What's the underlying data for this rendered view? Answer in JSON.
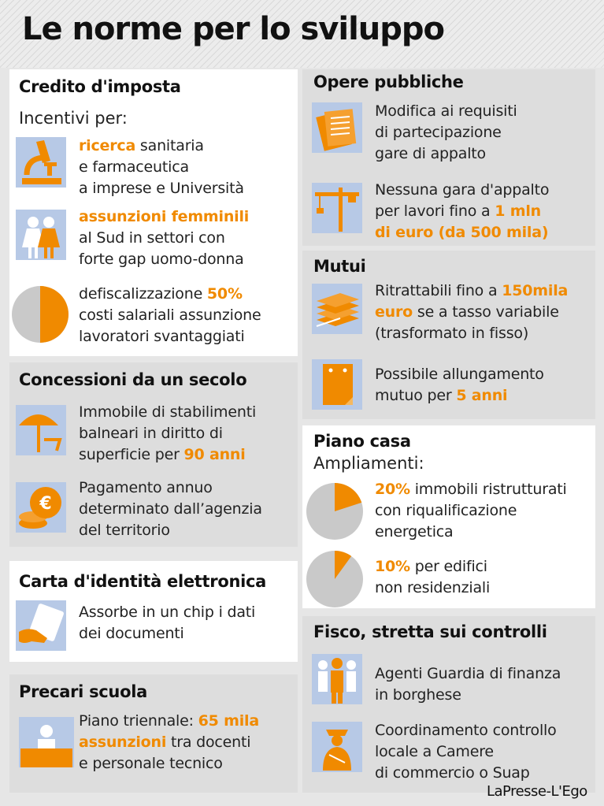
{
  "title": "Le norme per lo sviluppo",
  "credit": "LaPresse-L'Ego",
  "colors": {
    "accent": "#f08a00",
    "icon_bg": "#b7c9e6",
    "pie_grey": "#c9c9c9"
  },
  "left": {
    "credito": {
      "heading": "Credito d'imposta",
      "sub": "Incentivi per:",
      "items": [
        {
          "icon": "microscope-icon",
          "lines": [
            [
              {
                "t": "ricerca",
                "hl": true
              },
              {
                "t": " sanitaria"
              }
            ],
            [
              {
                "t": "e farmaceutica"
              }
            ],
            [
              {
                "t": "a imprese e Università"
              }
            ]
          ]
        },
        {
          "icon": "women-icon",
          "lines": [
            [
              {
                "t": "assunzioni femminili",
                "hl": true
              }
            ],
            [
              {
                "t": "al Sud in settori con"
              }
            ],
            [
              {
                "t": "forte gap uomo-donna"
              }
            ]
          ]
        },
        {
          "icon": "pie-50-icon",
          "pie_share": 0.5,
          "lines": [
            [
              {
                "t": "defiscalizzazione "
              },
              {
                "t": "50%",
                "hl": true
              }
            ],
            [
              {
                "t": "costi salariali assunzione"
              }
            ],
            [
              {
                "t": "lavoratori svantaggiati"
              }
            ]
          ]
        }
      ]
    },
    "concessioni": {
      "heading": "Concessioni da un secolo",
      "items": [
        {
          "icon": "beach-umbrella-icon",
          "lines": [
            [
              {
                "t": "Immobile di stabilimenti"
              }
            ],
            [
              {
                "t": "balneari in diritto di"
              }
            ],
            [
              {
                "t": "superficie per "
              },
              {
                "t": "90 anni",
                "hl": true
              }
            ]
          ]
        },
        {
          "icon": "euro-coins-icon",
          "lines": [
            [
              {
                "t": "Pagamento annuo"
              }
            ],
            [
              {
                "t": "determinato dall’agenzia"
              }
            ],
            [
              {
                "t": "del territorio"
              }
            ]
          ]
        }
      ]
    },
    "carta": {
      "heading": "Carta d'identità elettronica",
      "items": [
        {
          "icon": "id-card-icon",
          "lines": [
            [
              {
                "t": "Assorbe in un chip i dati"
              }
            ],
            [
              {
                "t": "dei documenti"
              }
            ]
          ]
        }
      ]
    },
    "precari": {
      "heading": "Precari scuola",
      "items": [
        {
          "icon": "teacher-desk-icon",
          "lines": [
            [
              {
                "t": "Piano triennale: "
              },
              {
                "t": "65 mila",
                "hl": true
              }
            ],
            [
              {
                "t": "assunzioni",
                "hl": true
              },
              {
                "t": " tra docenti"
              }
            ],
            [
              {
                "t": "e personale tecnico"
              }
            ]
          ]
        }
      ]
    }
  },
  "right": {
    "opere": {
      "heading": "Opere pubbliche",
      "items": [
        {
          "icon": "documents-icon",
          "lines": [
            [
              {
                "t": "Modifica ai requisiti"
              }
            ],
            [
              {
                "t": "di partecipazione"
              }
            ],
            [
              {
                "t": "gare di appalto"
              }
            ]
          ]
        },
        {
          "icon": "crane-icon",
          "lines": [
            [
              {
                "t": "Nessuna gara d'appalto"
              }
            ],
            [
              {
                "t": "per lavori fino a "
              },
              {
                "t": "1 mln",
                "hl": true
              }
            ],
            [
              {
                "t": "di euro (da 500 mila)",
                "hl": true
              }
            ]
          ]
        }
      ]
    },
    "mutui": {
      "heading": "Mutui",
      "items": [
        {
          "icon": "banknotes-icon",
          "lines": [
            [
              {
                "t": "Ritrattabili fino a "
              },
              {
                "t": "150mila",
                "hl": true
              }
            ],
            [
              {
                "t": "euro",
                "hl": true
              },
              {
                "t": " se a tasso variabile"
              }
            ],
            [
              {
                "t": "(trasformato in fisso)"
              }
            ]
          ]
        },
        {
          "icon": "calendar-icon",
          "lines": [
            [
              {
                "t": "Possibile allungamento"
              }
            ],
            [
              {
                "t": "mutuo per "
              },
              {
                "t": "5 anni",
                "hl": true
              }
            ]
          ]
        }
      ]
    },
    "piano": {
      "heading": "Piano casa",
      "sub": "Ampliamenti:",
      "items": [
        {
          "icon": "pie-20-icon",
          "pie_share": 0.2,
          "lines": [
            [
              {
                "t": "20%",
                "hl": true
              },
              {
                "t": " immobili ristrutturati"
              }
            ],
            [
              {
                "t": "con riqualificazione"
              }
            ],
            [
              {
                "t": "energetica"
              }
            ]
          ]
        },
        {
          "icon": "pie-10-icon",
          "pie_share": 0.1,
          "lines": [
            [
              {
                "t": "10%",
                "hl": true
              },
              {
                "t": " per edifici"
              }
            ],
            [
              {
                "t": "non residenziali"
              }
            ]
          ]
        }
      ]
    },
    "fisco": {
      "heading": "Fisco, stretta sui controlli",
      "items": [
        {
          "icon": "agents-icon",
          "lines": [
            [
              {
                "t": "Agenti Guardia di finanza"
              }
            ],
            [
              {
                "t": "in borghese"
              }
            ]
          ]
        },
        {
          "icon": "officer-icon",
          "lines": [
            [
              {
                "t": "Coordinamento controllo"
              }
            ],
            [
              {
                "t": "locale a Camere"
              }
            ],
            [
              {
                "t": "di commercio o Suap"
              }
            ]
          ]
        }
      ]
    }
  }
}
